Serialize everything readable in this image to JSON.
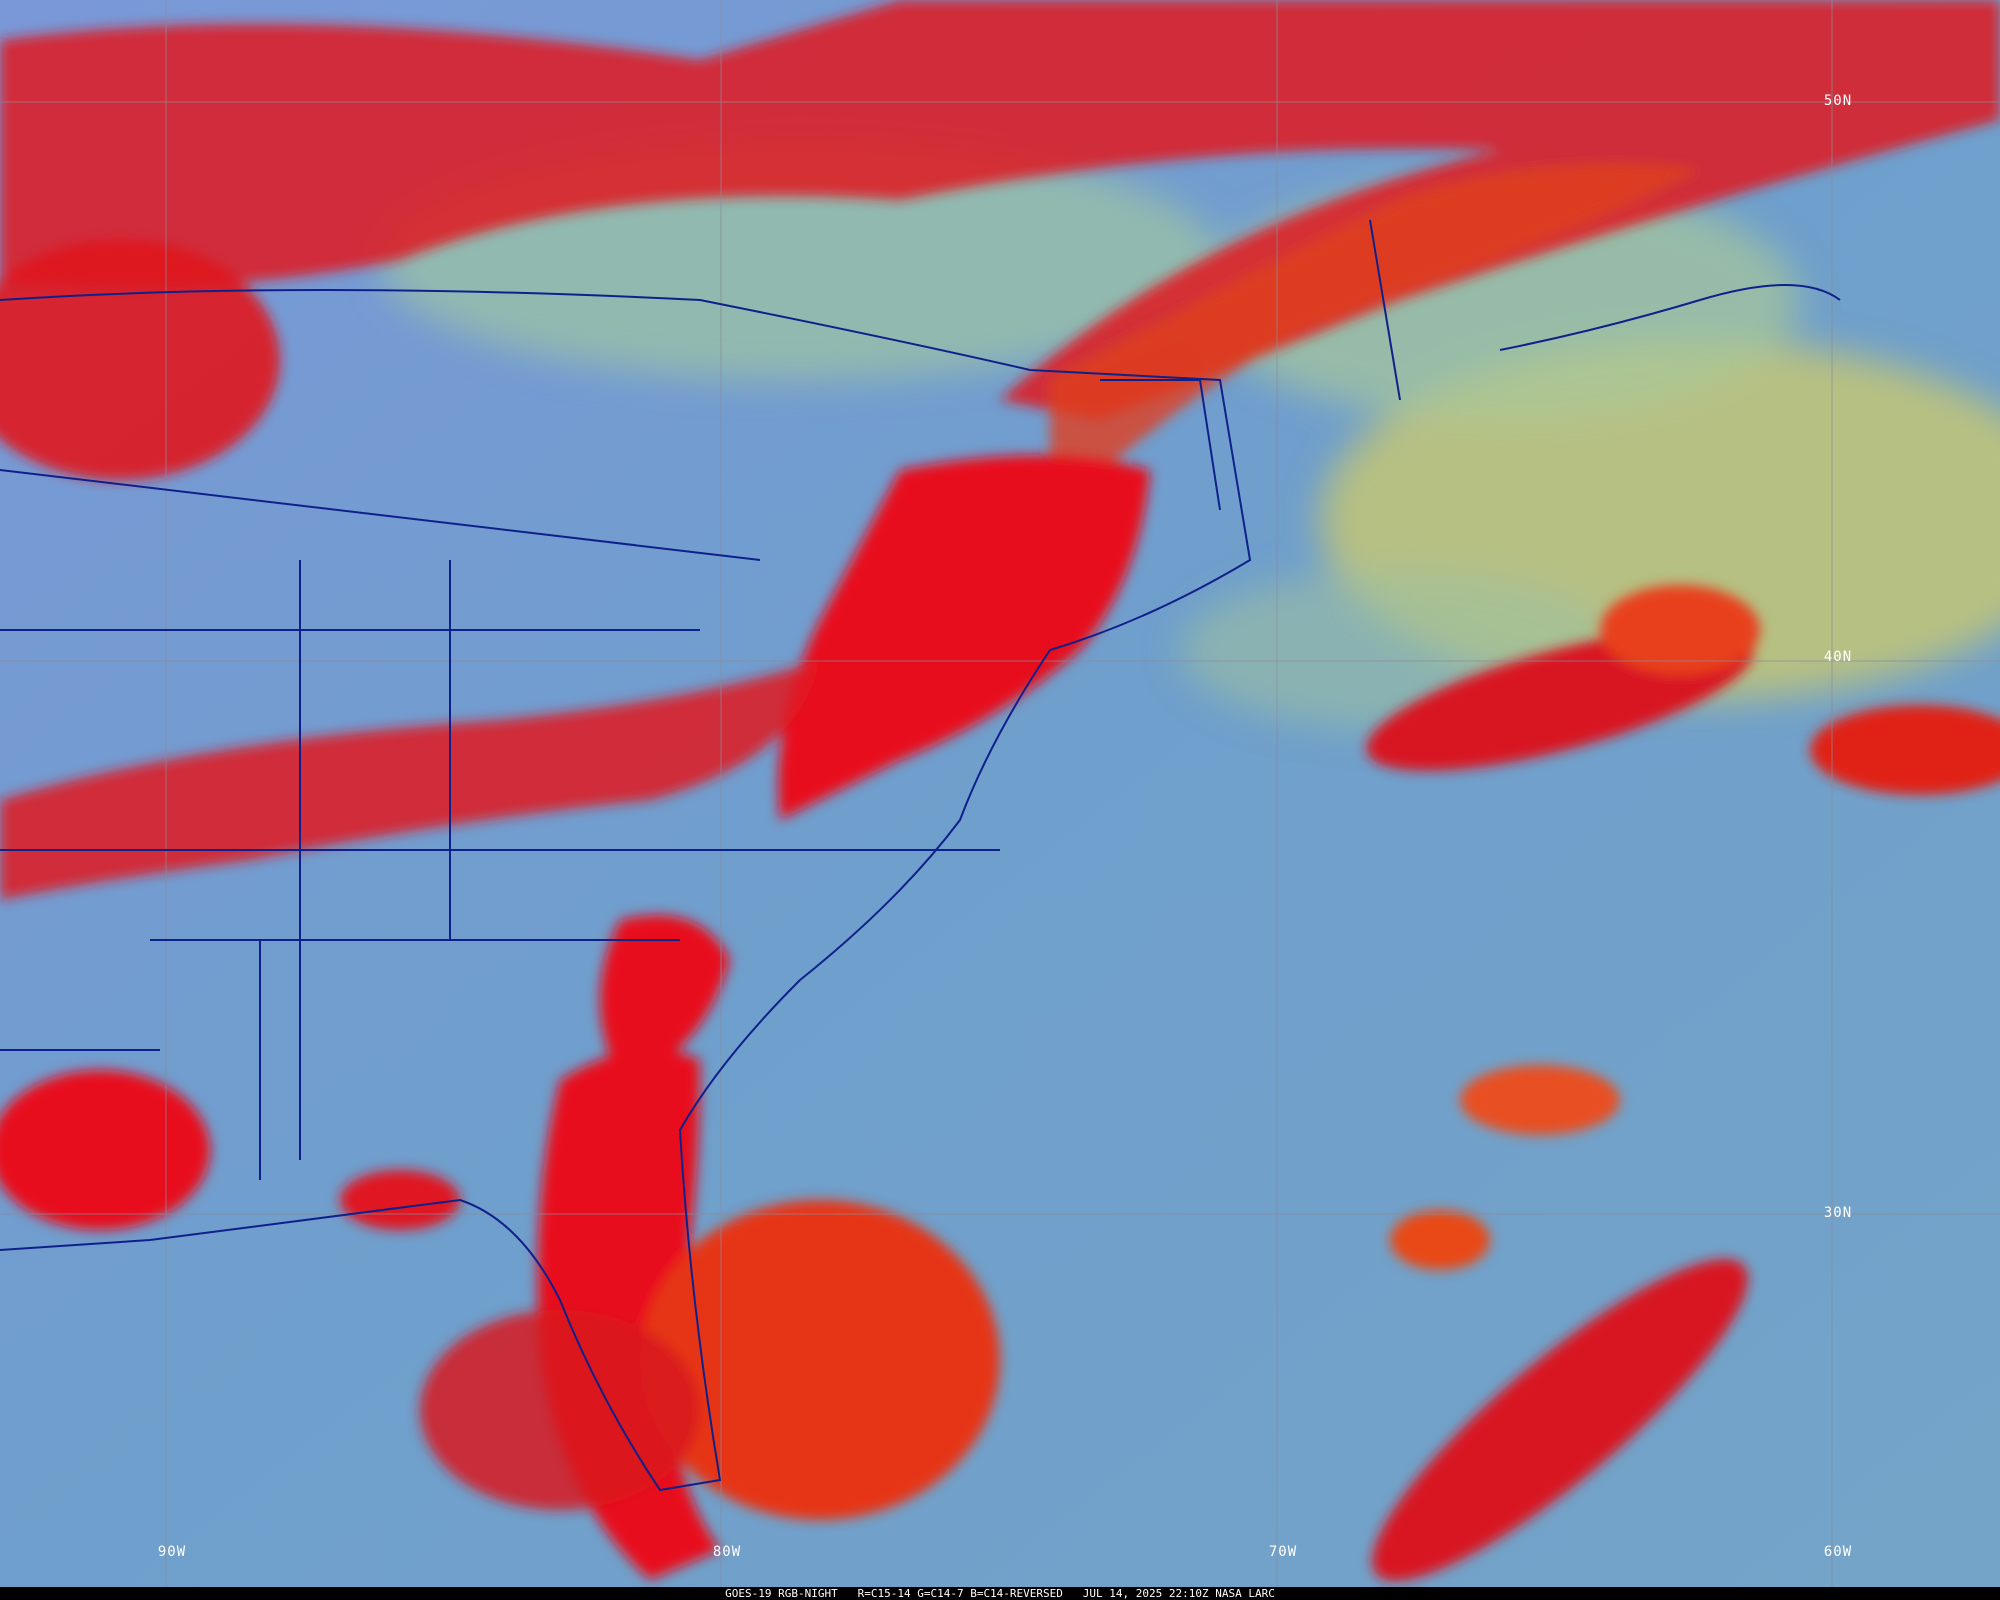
{
  "caption": {
    "satellite": "GOES-19 RGB-NIGHT",
    "recipe": "R=C15-14 G=C14-7 B=C14-REVERSED",
    "timestamp": "JUL 14, 2025 22:10Z NASA LARC"
  },
  "grid": {
    "latitude_labels": [
      "50N",
      "40N",
      "30N"
    ],
    "longitude_labels": [
      "90W",
      "80W",
      "70W",
      "60W"
    ],
    "line_color": "#8a8a9a"
  },
  "colors": {
    "ocean_clear": "#6f9ccc",
    "land_clear": "#7f9be0",
    "low_cloud": "#a8c890",
    "deep_convection": "#e8101a",
    "thin_cirrus": "#f08030",
    "borders": "#10208a"
  }
}
